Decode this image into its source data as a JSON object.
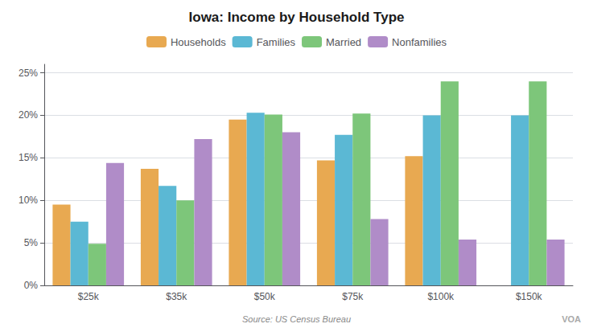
{
  "chart_data": {
    "type": "bar",
    "title": "Iowa: Income by Household Type",
    "subtitle": "Source: US Census Bureau",
    "annotations": [
      "VOA"
    ],
    "categories": [
      "$25k",
      "$35k",
      "$50k",
      "$75k",
      "$100k",
      "$150k"
    ],
    "series": [
      {
        "name": "Households",
        "color": "#E8A951",
        "values": [
          9.5,
          13.7,
          19.5,
          14.7,
          15.2,
          null
        ]
      },
      {
        "name": "Families",
        "color": "#5BB8D4",
        "values": [
          7.5,
          11.7,
          20.3,
          17.7,
          20.0,
          20.0
        ]
      },
      {
        "name": "Married",
        "color": "#7DC67A",
        "values": [
          4.9,
          10.0,
          20.1,
          20.2,
          24.0,
          24.0
        ]
      },
      {
        "name": "Nonfamilies",
        "color": "#B08CC8",
        "values": [
          14.4,
          17.2,
          18.0,
          7.8,
          5.4,
          5.4
        ]
      }
    ],
    "ylim": [
      0,
      26
    ],
    "yticks": [
      {
        "value": 0,
        "label": "0%"
      },
      {
        "value": 5,
        "label": "5%"
      },
      {
        "value": 10,
        "label": "10%"
      },
      {
        "value": 15,
        "label": "15%"
      },
      {
        "value": 20,
        "label": "20%"
      },
      {
        "value": 25,
        "label": "25%"
      }
    ],
    "grid": true,
    "legend": "top"
  }
}
